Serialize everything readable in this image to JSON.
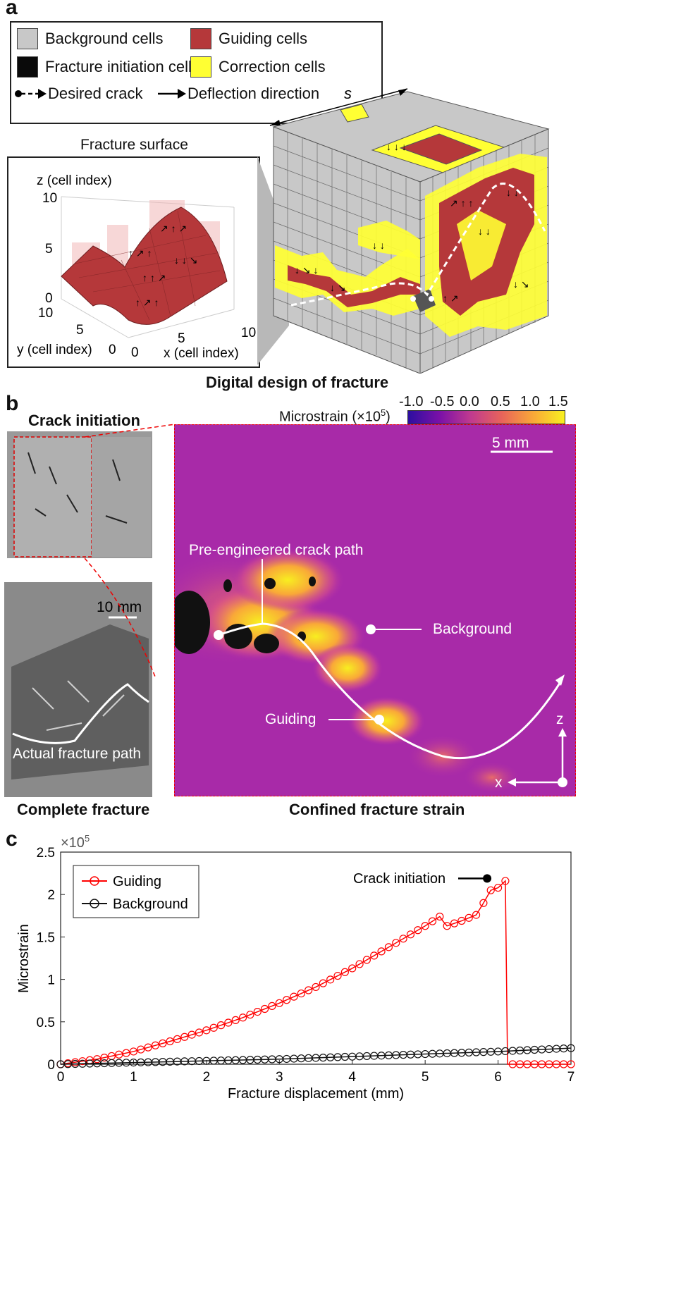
{
  "panel_a": {
    "letter": "a",
    "legend": {
      "background": "Background cells",
      "guiding": "Guiding cells",
      "initiation": "Fracture initiation cell",
      "correction": "Correction cells",
      "desired_crack": "Desired crack",
      "deflection": "Deflection direction"
    },
    "colors": {
      "background": "#c8c8c8",
      "guiding": "#b5383a",
      "initiation": "#0a0a0a",
      "correction": "#ffff33"
    },
    "fracture_surface_title": "Fracture surface",
    "z_label": "z (cell index)",
    "y_label": "y (cell index)",
    "x_label": "x (cell index)",
    "z_ticks": [
      "10",
      "5",
      "0"
    ],
    "y_ticks": [
      "10",
      "5",
      "0"
    ],
    "x_ticks": [
      "0",
      "5",
      "10"
    ],
    "cube_label": "s",
    "caption": "Digital design of fracture"
  },
  "panel_b": {
    "letter": "b",
    "crack_initiation": "Crack initiation",
    "complete_fracture": "Complete fracture",
    "scale_small": "10 mm",
    "actual_path": "Actual fracture path",
    "colorbar_label": "Microstrain (×10",
    "colorbar_exp": "5",
    "colorbar_close": ")",
    "colorbar_ticks": [
      "-1.0",
      "-0.5",
      "0.0",
      "0.5",
      "1.0",
      "1.5"
    ],
    "scale_big": "5 mm",
    "pre_engineered": "Pre-engineered crack path",
    "background_label": "Background",
    "guiding_label": "Guiding",
    "axis_z": "z",
    "axis_x": "x",
    "caption": "Confined fracture strain"
  },
  "panel_c": {
    "letter": "c",
    "chart_data": {
      "type": "line",
      "xlabel": "Fracture displacement (mm)",
      "ylabel": "Microstrain",
      "y_multiplier": "×10",
      "y_multiplier_exp": "5",
      "xlim": [
        0,
        7
      ],
      "ylim": [
        0,
        2.5
      ],
      "x_ticks": [
        "0",
        "1",
        "2",
        "3",
        "4",
        "5",
        "6",
        "7"
      ],
      "y_ticks": [
        "0",
        "0.5",
        "1",
        "1.5",
        "2",
        "2.5"
      ],
      "legend_position": "top-left",
      "annotation": "Crack initiation",
      "annotation_point": [
        5.85,
        2.19
      ],
      "series": [
        {
          "name": "Guiding",
          "color": "#ff0000",
          "x": [
            0,
            0.5,
            1,
            1.5,
            2,
            2.5,
            3,
            3.5,
            4,
            4.5,
            5,
            5.2,
            5.25,
            5.3,
            5.5,
            5.7,
            5.8,
            5.9,
            6.0,
            6.1,
            6.13,
            6.5,
            7
          ],
          "y": [
            0,
            0.06,
            0.15,
            0.27,
            0.4,
            0.55,
            0.72,
            0.91,
            1.13,
            1.38,
            1.63,
            1.74,
            1.68,
            1.63,
            1.69,
            1.76,
            1.9,
            2.05,
            2.08,
            2.16,
            0.0,
            0.0,
            0.0
          ]
        },
        {
          "name": "Background",
          "color": "#111111",
          "x": [
            0,
            1,
            2,
            3,
            4,
            5,
            6,
            7
          ],
          "y": [
            0,
            0.02,
            0.04,
            0.06,
            0.09,
            0.12,
            0.15,
            0.19
          ]
        }
      ]
    }
  }
}
